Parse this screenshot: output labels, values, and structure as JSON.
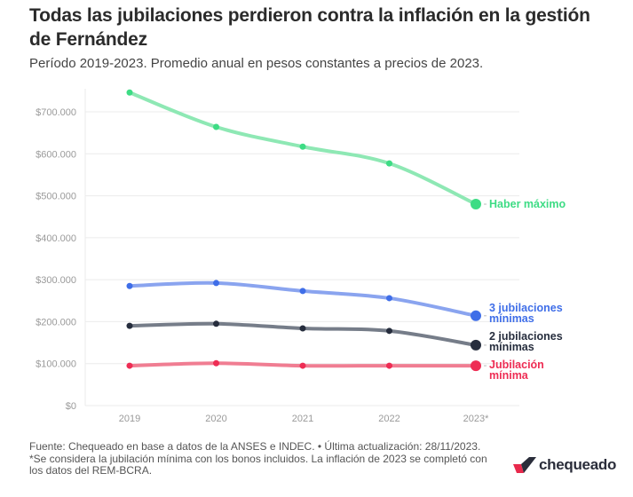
{
  "header": {
    "title": "Todas las jubilaciones perdieron contra la inflación en la gestión de Fernández",
    "subtitle": "Período 2019-2023. Promedio anual en pesos constantes a precios de 2023."
  },
  "footer": {
    "source": "Fuente: Chequeado en base a datos de la ANSES e INDEC. • Última actualización: 28/11/2023.",
    "note": "*Se considera la jubilación mínima con los bonos incluidos. La inflación de 2023 se completó con los datos del REM-BCRA."
  },
  "logo": {
    "text": "chequeado",
    "icon": "chequeado-check-logo-icon",
    "colors": {
      "red": "#e8294c",
      "dark": "#2a2d3a"
    }
  },
  "chart_data": {
    "type": "line",
    "title": "Todas las jubilaciones perdieron contra la inflación en la gestión de Fernández",
    "subtitle": "Período 2019-2023. Promedio anual en pesos constantes a precios de 2023.",
    "xlabel": "",
    "ylabel": "",
    "x": [
      "2019",
      "2020",
      "2021",
      "2022",
      "2023*"
    ],
    "ylim": [
      0,
      760000
    ],
    "yticks": [
      0,
      100000,
      200000,
      300000,
      400000,
      500000,
      600000,
      700000
    ],
    "ytick_labels": [
      "$0",
      "$100.000",
      "$200.000",
      "$300.000",
      "$400.000",
      "$500.000",
      "$600.000",
      "$700.000"
    ],
    "grid": true,
    "legend": "direct labels at line ends (right)",
    "series": [
      {
        "name": "Haber máximo",
        "label_lines": [
          "Haber máximo"
        ],
        "color": "#3ddc84",
        "line_color": "#8ee8b4",
        "values": [
          746000,
          664000,
          617000,
          577000,
          480000
        ]
      },
      {
        "name": "3 jubilaciones mínimas",
        "label_lines": [
          "3 jubilaciones",
          "mínimas"
        ],
        "color": "#3f6ee8",
        "line_color": "#8aa4ef",
        "values": [
          285000,
          292000,
          273000,
          256000,
          214000
        ]
      },
      {
        "name": "2 jubilaciones mínimas",
        "label_lines": [
          "2 jubilaciones",
          "mínimas"
        ],
        "color": "#262d3d",
        "line_color": "#767d89",
        "values": [
          190000,
          195000,
          184000,
          178000,
          144000
        ]
      },
      {
        "name": "Jubilación mínima",
        "label_lines": [
          "Jubilación",
          "mínima"
        ],
        "color": "#ee2d54",
        "line_color": "#f07d92",
        "values": [
          95000,
          101000,
          95000,
          95000,
          95000
        ]
      }
    ]
  }
}
